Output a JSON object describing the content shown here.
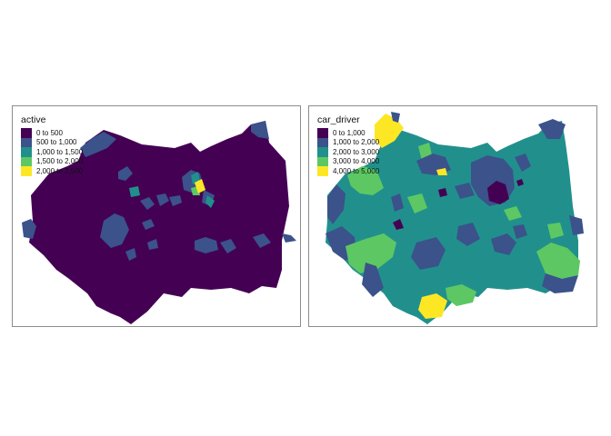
{
  "maps": [
    {
      "legend_title": "active",
      "legend": [
        {
          "label": "0 to 500",
          "color": "#440154"
        },
        {
          "label": "500 to 1,000",
          "color": "#3b528b"
        },
        {
          "label": "1,000 to 1,500",
          "color": "#21908c"
        },
        {
          "label": "1,500 to 2,000",
          "color": "#5dc863"
        },
        {
          "label": "2,000 to 2,500",
          "color": "#fde725"
        }
      ]
    },
    {
      "legend_title": "car_driver",
      "legend": [
        {
          "label": "0 to 1,000",
          "color": "#440154"
        },
        {
          "label": "1,000 to 2,000",
          "color": "#3b528b"
        },
        {
          "label": "2,000 to 3,000",
          "color": "#21908c"
        },
        {
          "label": "3,000 to 4,000",
          "color": "#5dc863"
        },
        {
          "label": "4,000 to 5,000",
          "color": "#fde725"
        }
      ]
    }
  ]
}
